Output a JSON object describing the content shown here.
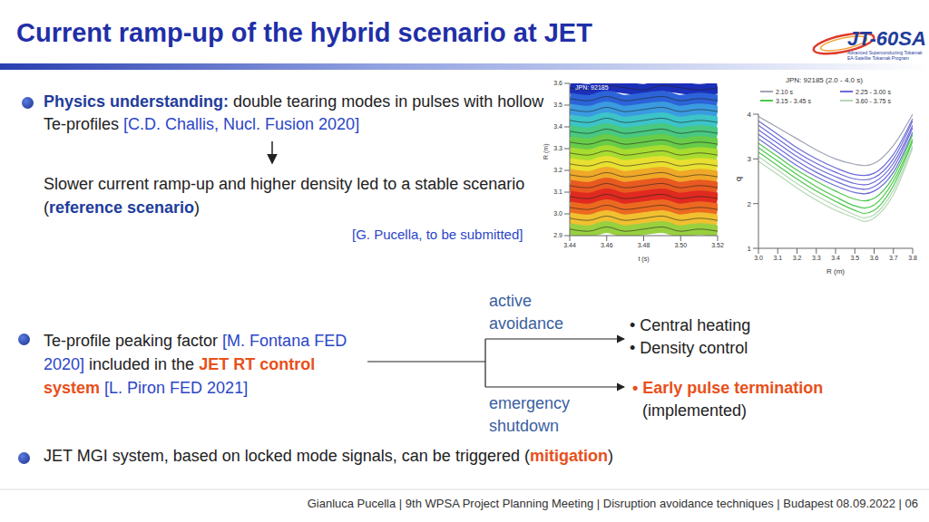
{
  "header": {
    "title": "Current ramp-up of the hybrid scenario at JET",
    "logo": {
      "name": "JT-60SA",
      "lines": [
        "Advanced Superconducting Tokamak",
        "EA-Satellite Tokamak Program"
      ]
    }
  },
  "section1": {
    "bullet": [
      {
        "text": "Physics understanding:",
        "style": "strong"
      },
      {
        "text": " double tearing modes in pulses with hollow Te-profiles ",
        "style": "plain"
      },
      {
        "text": "[C.D. Challis, Nucl. Fusion 2020]",
        "style": "cite"
      }
    ],
    "result": [
      {
        "text": "Slower current ramp-up and higher density led to a stable scenario (",
        "style": "plain"
      },
      {
        "text": "reference scenario",
        "style": "strong"
      },
      {
        "text": ")",
        "style": "plain"
      }
    ],
    "citation": "[G. Pucella, to be submitted]"
  },
  "section2": {
    "bullet": [
      {
        "text": "Te-profile peaking factor ",
        "style": "plain"
      },
      {
        "text": "[M. Fontana FED 2020]",
        "style": "cite"
      },
      {
        "text": " included in the ",
        "style": "plain"
      },
      {
        "text": "JET RT control system",
        "style": "highlight"
      },
      {
        "text": " ",
        "style": "plain"
      },
      {
        "text": "[L. Piron FED 2021]",
        "style": "cite"
      }
    ],
    "branches": [
      {
        "label": "active avoidance",
        "items": [
          {
            "text": "• Central heating",
            "style": "plain"
          },
          {
            "text": "• Density control",
            "style": "plain"
          }
        ]
      },
      {
        "label": "emergency shutdown",
        "items": [
          {
            "text": "• Early pulse termination",
            "style": "highlight",
            "note": "(implemented)"
          }
        ]
      }
    ]
  },
  "section3": {
    "bullet": [
      {
        "text": "JET MGI system, based on locked mode signals, can be triggered (",
        "style": "plain"
      },
      {
        "text": "mitigation",
        "style": "highlight"
      },
      {
        "text": ")",
        "style": "plain"
      }
    ]
  },
  "footer": "Gianluca Pucella | 9th WPSA Project Planning Meeting | Disruption avoidance techniques | Budapest 08.09.2022 | 06",
  "chart_data": [
    {
      "type": "contour",
      "title": "JPN: 92185",
      "x_label": "t (s)",
      "y_label": "R (m)",
      "x": [
        3.44,
        3.45,
        3.46,
        3.47,
        3.48,
        3.49,
        3.5,
        3.51,
        3.52
      ],
      "xlim": [
        3.44,
        3.52
      ],
      "xticks": [
        3.44,
        3.46,
        3.48,
        {
          "value": 3.5,
          "label": "3.50"
        },
        3.52
      ],
      "ylim": [
        2.9,
        3.6
      ],
      "yticks": [
        2.9,
        {
          "value": 3,
          "label": "3.0"
        },
        3.1,
        3.2,
        3.3,
        3.4,
        3.5,
        3.6
      ],
      "series": [
        {
          "color": "#1c2fb8",
          "values": [
            3.58,
            3.57,
            3.59,
            3.58,
            3.57,
            3.59,
            3.58,
            3.57,
            3.58
          ]
        },
        {
          "color": "#2c63d8",
          "values": [
            3.53,
            3.52,
            3.54,
            3.52,
            3.53,
            3.54,
            3.52,
            3.53,
            3.52
          ]
        },
        {
          "color": "#3a9be0",
          "values": [
            3.48,
            3.47,
            3.49,
            3.47,
            3.48,
            3.49,
            3.47,
            3.48,
            3.47
          ]
        },
        {
          "color": "#3cc4c8",
          "values": [
            3.43,
            3.42,
            3.44,
            3.42,
            3.43,
            3.44,
            3.42,
            3.43,
            3.42
          ]
        },
        {
          "color": "#48c880",
          "values": [
            3.38,
            3.37,
            3.39,
            3.37,
            3.38,
            3.39,
            3.37,
            3.38,
            3.37
          ]
        },
        {
          "color": "#68cc48",
          "values": [
            3.33,
            3.32,
            3.34,
            3.32,
            3.33,
            3.34,
            3.32,
            3.33,
            3.32
          ]
        },
        {
          "color": "#a8dc30",
          "values": [
            3.28,
            3.27,
            3.29,
            3.27,
            3.28,
            3.29,
            3.27,
            3.28,
            3.27
          ]
        },
        {
          "color": "#e8e030",
          "values": [
            3.23,
            3.22,
            3.24,
            3.22,
            3.23,
            3.24,
            3.22,
            3.23,
            3.22
          ]
        },
        {
          "color": "#f0a828",
          "values": [
            3.18,
            3.17,
            3.19,
            3.17,
            3.18,
            3.19,
            3.17,
            3.18,
            3.17
          ]
        },
        {
          "color": "#e85a20",
          "values": [
            3.13,
            3.12,
            3.14,
            3.12,
            3.13,
            3.14,
            3.12,
            3.13,
            3.12
          ]
        },
        {
          "color": "#e02a20",
          "values": [
            3.08,
            3.07,
            3.09,
            3.07,
            3.08,
            3.09,
            3.07,
            3.08,
            3.07
          ]
        },
        {
          "color": "#ec6a20",
          "values": [
            3.03,
            3.02,
            3.04,
            3.02,
            3.03,
            3.04,
            3.02,
            3.03,
            3.02
          ]
        },
        {
          "color": "#f0c030",
          "values": [
            2.98,
            2.97,
            2.99,
            2.97,
            2.98,
            2.99,
            2.97,
            2.98,
            2.97
          ]
        },
        {
          "color": "#98d040",
          "values": [
            2.93,
            2.92,
            2.94,
            2.92,
            2.93,
            2.94,
            2.92,
            2.93,
            2.92
          ]
        }
      ]
    },
    {
      "type": "line",
      "title": "JPN: 92185 (2.0 - 4.0 s)",
      "x_label": "R (m)",
      "y_label": "q",
      "legend": "top",
      "x": [
        3.0,
        3.1,
        3.2,
        3.3,
        3.4,
        3.5,
        3.55,
        3.6,
        3.7,
        3.8
      ],
      "xlim": [
        3.0,
        3.8
      ],
      "xticks": [
        {
          "value": 3,
          "label": "3.0"
        },
        3.1,
        3.2,
        3.3,
        3.4,
        3.5,
        3.6,
        3.7,
        3.8
      ],
      "ylim": [
        1,
        4
      ],
      "yticks": [
        1,
        2,
        3,
        4
      ],
      "series": [
        {
          "name": "2.10 s",
          "color": "#a0a4b4",
          "lines": [
            [
              3.95,
              3.7,
              3.45,
              3.2,
              3.0,
              2.88,
              2.85,
              2.9,
              3.3,
              4.0
            ]
          ]
        },
        {
          "name": "2.25 - 3.00 s",
          "color": "#6b6bd8",
          "lines": [
            [
              3.85,
              3.55,
              3.25,
              3.0,
              2.8,
              2.65,
              2.63,
              2.68,
              3.1,
              3.9
            ],
            [
              3.75,
              3.45,
              3.15,
              2.9,
              2.7,
              2.55,
              2.53,
              2.58,
              3.0,
              3.85
            ],
            [
              3.65,
              3.35,
              3.05,
              2.8,
              2.6,
              2.45,
              2.42,
              2.48,
              2.9,
              3.75
            ],
            [
              3.55,
              3.25,
              2.95,
              2.7,
              2.5,
              2.35,
              2.32,
              2.38,
              2.8,
              3.7
            ],
            [
              3.45,
              3.15,
              2.85,
              2.6,
              2.4,
              2.25,
              2.22,
              2.28,
              2.7,
              3.6
            ]
          ]
        },
        {
          "name": "3.15 - 3.45 s",
          "color": "#4cc84c",
          "lines": [
            [
              3.35,
              3.05,
              2.75,
              2.5,
              2.28,
              2.1,
              2.06,
              2.12,
              2.6,
              3.55
            ],
            [
              3.25,
              2.95,
              2.65,
              2.38,
              2.15,
              1.95,
              1.9,
              1.97,
              2.5,
              3.45
            ],
            [
              3.15,
              2.85,
              2.55,
              2.28,
              2.05,
              1.85,
              1.78,
              1.85,
              2.4,
              3.4
            ]
          ]
        },
        {
          "name": "3.60 - 3.75 s",
          "color": "#b4d8b4",
          "lines": [
            [
              3.05,
              2.75,
              2.45,
              2.18,
              1.95,
              1.75,
              1.68,
              1.75,
              2.3,
              3.3
            ],
            [
              2.95,
              2.65,
              2.35,
              2.08,
              1.85,
              1.68,
              1.6,
              1.68,
              2.2,
              3.25
            ]
          ]
        }
      ]
    }
  ]
}
